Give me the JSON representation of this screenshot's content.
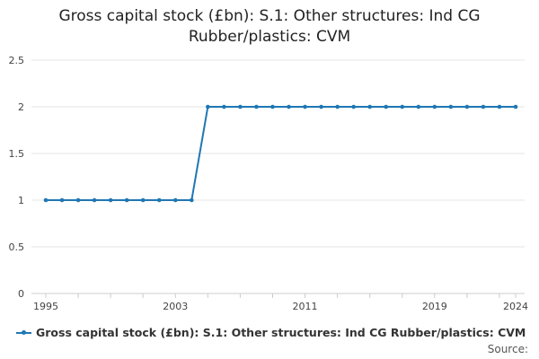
{
  "chart_data": {
    "type": "line",
    "title": "Gross capital stock (£bn): S.1: Other structures: Ind CG Rubber/plastics: CVM",
    "xlabel": "",
    "ylabel": "",
    "x": [
      1995,
      1996,
      1997,
      1998,
      1999,
      2000,
      2001,
      2002,
      2003,
      2004,
      2005,
      2006,
      2007,
      2008,
      2009,
      2010,
      2011,
      2012,
      2013,
      2014,
      2015,
      2016,
      2017,
      2018,
      2019,
      2020,
      2021,
      2022,
      2023,
      2024
    ],
    "series": [
      {
        "name": "Gross capital stock (£bn): S.1: Other structures: Ind CG Rubber/plastics: CVM",
        "values": [
          1,
          1,
          1,
          1,
          1,
          1,
          1,
          1,
          1,
          1,
          2,
          2,
          2,
          2,
          2,
          2,
          2,
          2,
          2,
          2,
          2,
          2,
          2,
          2,
          2,
          2,
          2,
          2,
          2,
          2
        ]
      }
    ],
    "xlim": [
      1995,
      2024
    ],
    "ylim": [
      0,
      2.5
    ],
    "x_tick_labels": [
      "1995",
      "2003",
      "2011",
      "2019",
      "2024"
    ],
    "y_tick_labels": [
      "0",
      "0.5",
      "1",
      "1.5",
      "2",
      "2.5"
    ],
    "grid": "horizontal",
    "legend_position": "bottom-left",
    "colors": {
      "series": "#1f77b4",
      "grid": "#e6e6e6",
      "axis": "#cccccc",
      "text": "#222222"
    }
  },
  "footer": {
    "source_label": "Source:"
  }
}
